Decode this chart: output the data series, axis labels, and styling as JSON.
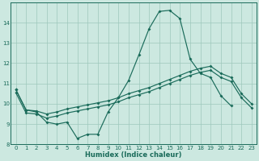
{
  "xlabel": "Humidex (Indice chaleur)",
  "background_color": "#cce8e0",
  "grid_color": "#9dc8bc",
  "line_color": "#1a6b5a",
  "x_values": [
    0,
    1,
    2,
    3,
    4,
    5,
    6,
    7,
    8,
    9,
    10,
    11,
    12,
    13,
    14,
    15,
    16,
    17,
    18,
    19,
    20,
    21,
    22,
    23
  ],
  "line_volatile": [
    10.7,
    9.7,
    9.6,
    9.1,
    9.0,
    9.1,
    8.3,
    8.5,
    8.5,
    9.6,
    10.3,
    11.15,
    12.4,
    13.7,
    14.55,
    14.6,
    14.2,
    12.2,
    11.5,
    11.3,
    10.4,
    9.9,
    null,
    null
  ],
  "line_upper": [
    10.7,
    9.7,
    9.65,
    9.5,
    9.6,
    9.75,
    9.85,
    9.95,
    10.05,
    10.15,
    10.3,
    10.5,
    10.65,
    10.8,
    11.0,
    11.2,
    11.4,
    11.6,
    11.75,
    11.85,
    11.5,
    11.3,
    10.5,
    10.0
  ],
  "line_lower": [
    10.55,
    9.55,
    9.5,
    9.3,
    9.4,
    9.55,
    9.65,
    9.75,
    9.85,
    9.95,
    10.1,
    10.3,
    10.45,
    10.6,
    10.8,
    11.0,
    11.2,
    11.4,
    11.55,
    11.65,
    11.3,
    11.1,
    10.3,
    9.8
  ],
  "ylim": [
    8,
    15
  ],
  "yticks": [
    8,
    9,
    10,
    11,
    12,
    13,
    14
  ],
  "xlim": [
    -0.5,
    23.5
  ],
  "xticks": [
    0,
    1,
    2,
    3,
    4,
    5,
    6,
    7,
    8,
    9,
    10,
    11,
    12,
    13,
    14,
    15,
    16,
    17,
    18,
    19,
    20,
    21,
    22,
    23
  ]
}
